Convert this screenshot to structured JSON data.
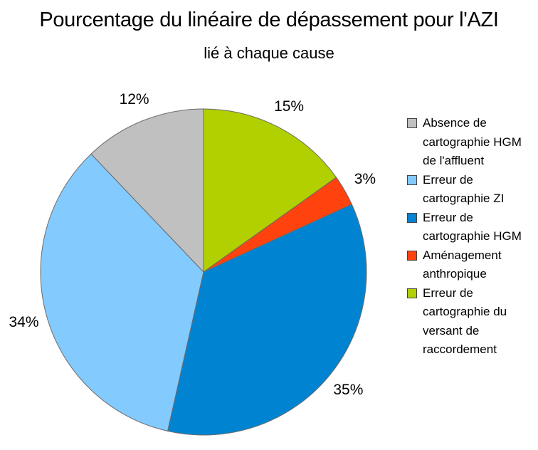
{
  "chart_data": {
    "type": "pie",
    "title": "Pourcentage du linéaire de dépassement pour l'AZI",
    "subtitle": "lié à chaque cause",
    "slices": [
      {
        "label": "Erreur de cartographie du versant de raccordement",
        "value": 15,
        "value_label": "15%",
        "color": "#b2d000"
      },
      {
        "label": "Aménagement anthropique",
        "value": 3,
        "value_label": "3%",
        "color": "#ff420e"
      },
      {
        "label": "Erreur de cartographie HGM",
        "value": 35,
        "value_label": "35%",
        "color": "#0084d1"
      },
      {
        "label": "Erreur de cartographie ZI",
        "value": 34,
        "value_label": "34%",
        "color": "#83caff"
      },
      {
        "label": "Absence de cartographie HGM de l'affluent",
        "value": 12,
        "value_label": "12%",
        "color": "#c0c0c0"
      }
    ],
    "legend": {
      "placement": "right",
      "items": [
        {
          "label": "Absence de cartographie HGM de l'affluent",
          "color": "#c0c0c0"
        },
        {
          "label": "Erreur de cartographie ZI",
          "color": "#83caff"
        },
        {
          "label": "Erreur de cartographie HGM",
          "color": "#0084d1"
        },
        {
          "label": "Aménagement anthropique",
          "color": "#ff420e"
        },
        {
          "label": "Erreur de cartographie du versant de raccordement",
          "color": "#b2d000"
        }
      ]
    }
  }
}
